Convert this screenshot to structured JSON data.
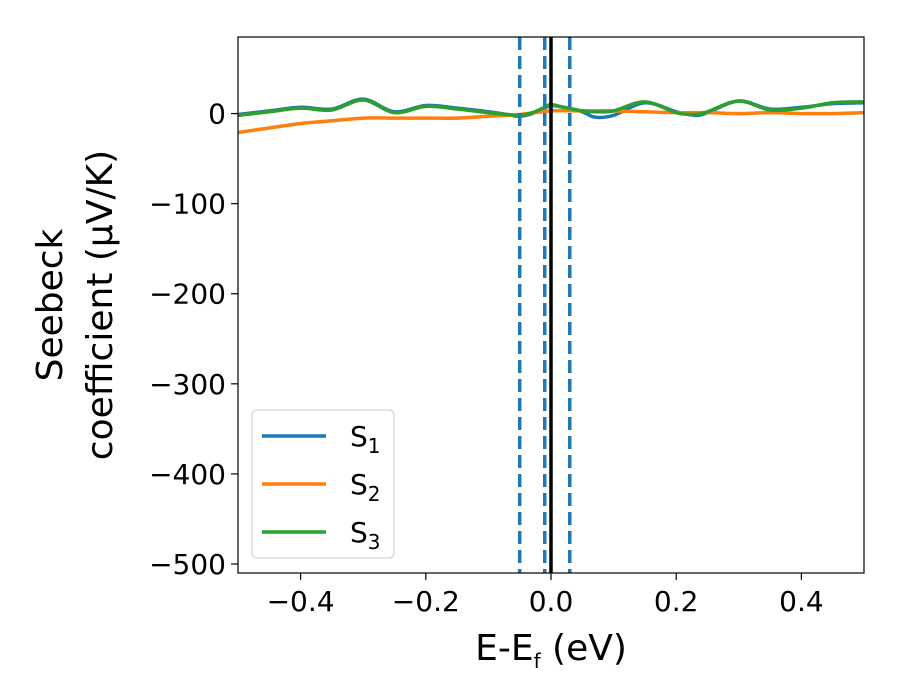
{
  "chart_data": {
    "type": "line",
    "title": "",
    "xlabel": {
      "main": "E-E",
      "sub": "f",
      "tail": " (eV)"
    },
    "ylabel": {
      "line1": "Seebeck",
      "line2": "coefficient  (μV/K)"
    },
    "xlim": [
      -0.5,
      0.5
    ],
    "ylim": [
      -510,
      85
    ],
    "xticks": [
      -0.4,
      -0.2,
      0.0,
      0.2,
      0.4
    ],
    "xtick_labels": [
      "−0.4",
      "−0.2",
      "0.0",
      "0.2",
      "0.4"
    ],
    "yticks": [
      0,
      -100,
      -200,
      -300,
      -400,
      -500
    ],
    "ytick_labels": [
      "0",
      "−100",
      "−200",
      "−300",
      "−400",
      "−500"
    ],
    "grid": false,
    "legend_position": "bottom-left",
    "series": [
      {
        "name": "S1",
        "label_main": "S",
        "label_sub": "1",
        "color": "#1f77b4",
        "x": [
          -0.5,
          -0.45,
          -0.4,
          -0.35,
          -0.3,
          -0.25,
          -0.2,
          -0.15,
          -0.1,
          -0.07,
          -0.05,
          -0.03,
          -0.01,
          0.0,
          0.02,
          0.05,
          0.07,
          0.1,
          0.15,
          0.2,
          0.23,
          0.25,
          0.3,
          0.35,
          0.4,
          0.45,
          0.5
        ],
        "y": [
          -1,
          3,
          7,
          5,
          16,
          2,
          9,
          6,
          2,
          -1,
          -3,
          0,
          6,
          9,
          7,
          2,
          -4,
          -2,
          12,
          2,
          -2,
          1,
          14,
          5,
          7,
          11,
          12
        ]
      },
      {
        "name": "S2",
        "label_main": "S",
        "label_sub": "2",
        "color": "#ff7f0e",
        "x": [
          -0.5,
          -0.45,
          -0.4,
          -0.35,
          -0.3,
          -0.25,
          -0.2,
          -0.15,
          -0.1,
          -0.05,
          0.0,
          0.05,
          0.1,
          0.15,
          0.2,
          0.25,
          0.3,
          0.35,
          0.4,
          0.45,
          0.5
        ],
        "y": [
          -21,
          -16,
          -11,
          -8,
          -5,
          -5,
          -5,
          -5,
          -3,
          -1,
          3,
          3,
          3,
          2,
          1,
          1,
          0,
          1,
          0,
          0,
          1
        ]
      },
      {
        "name": "S3",
        "label_main": "S",
        "label_sub": "3",
        "color": "#2ca02c",
        "x": [
          -0.5,
          -0.45,
          -0.4,
          -0.35,
          -0.3,
          -0.25,
          -0.2,
          -0.15,
          -0.1,
          -0.07,
          -0.05,
          -0.03,
          -0.01,
          0.0,
          0.02,
          0.05,
          0.07,
          0.1,
          0.15,
          0.2,
          0.23,
          0.25,
          0.3,
          0.35,
          0.4,
          0.45,
          0.5
        ],
        "y": [
          -2,
          2,
          6,
          4,
          15,
          1,
          8,
          5,
          1,
          -1,
          -2,
          1,
          7,
          10,
          7,
          3,
          2,
          3,
          13,
          1,
          -1,
          2,
          14,
          4,
          6,
          12,
          13
        ]
      }
    ],
    "vertical_lines": [
      {
        "x": -0.05,
        "style": "dashed",
        "color": "#1f77b4"
      },
      {
        "x": -0.01,
        "style": "dashed",
        "color": "#1f77b4"
      },
      {
        "x": 0.03,
        "style": "dashed",
        "color": "#1f77b4"
      },
      {
        "x": 0.0,
        "style": "solid",
        "color": "#000000"
      }
    ]
  }
}
